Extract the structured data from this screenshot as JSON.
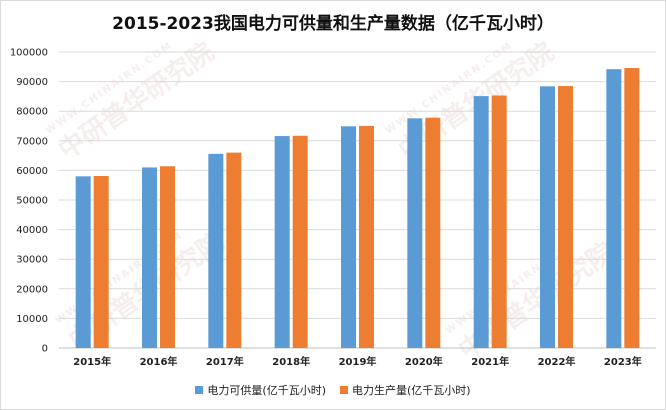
{
  "chart_data": {
    "type": "bar",
    "title": "2015-2023我国电力可供量和生产量数据（亿千瓦小时）",
    "categories": [
      "2015年",
      "2016年",
      "2017年",
      "2018年",
      "2019年",
      "2020年",
      "2021年",
      "2022年",
      "2023年"
    ],
    "series": [
      {
        "name": "电力可供量(亿千瓦小时)",
        "color": "#5b9bd5",
        "values": [
          58000,
          61000,
          65600,
          71600,
          74900,
          77600,
          85100,
          88400,
          94200
        ]
      },
      {
        "name": "电力生产量(亿千瓦小时)",
        "color": "#ed7d31",
        "values": [
          58100,
          61400,
          66000,
          71700,
          75000,
          77800,
          85300,
          88500,
          94600
        ]
      }
    ],
    "yticks": [
      "0",
      "10000",
      "20000",
      "30000",
      "40000",
      "50000",
      "60000",
      "70000",
      "80000",
      "90000",
      "100000"
    ],
    "ylim": [
      0,
      100000
    ],
    "grid": true,
    "legend_position": "bottom"
  },
  "watermark": {
    "brand": "中研普华研究院",
    "url": "WWW.CHINAIRN.COM"
  }
}
